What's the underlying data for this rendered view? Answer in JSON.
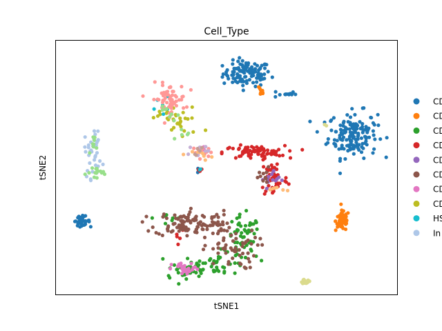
{
  "chart_data": {
    "type": "scatter",
    "title": "Cell_Type",
    "xlabel": "tSNE1",
    "ylabel": "tSNE2",
    "xlim": [
      0,
      100
    ],
    "ylim": [
      0,
      100
    ],
    "ticks": false,
    "grid": false,
    "legend_position": "right, clipped at figure edge",
    "legend_visible_labels": [
      "CD",
      "CD",
      "CD",
      "CD",
      "CD",
      "CD",
      "CD",
      "CD",
      "HS",
      "In"
    ],
    "series": [
      {
        "legend_text": "CD",
        "color": "#1f77b4",
        "clusters": [
          {
            "cx": 56,
            "cy": 87,
            "sx": 3.5,
            "sy": 2.5,
            "n": 110
          },
          {
            "cx": 67,
            "cy": 79,
            "sx": 1.7,
            "sy": 0.8,
            "n": 12
          },
          {
            "cx": 87,
            "cy": 63,
            "sx": 3.6,
            "sy": 4.5,
            "n": 160
          },
          {
            "cx": 7.5,
            "cy": 29,
            "sx": 1.2,
            "sy": 0.9,
            "n": 35
          },
          {
            "cx": 42,
            "cy": 49,
            "sx": 0.3,
            "sy": 0.5,
            "n": 3
          }
        ]
      },
      {
        "legend_text": "CD",
        "color": "#ff7f0e",
        "clusters": [
          {
            "cx": 84,
            "cy": 29,
            "sx": 1.0,
            "sy": 2.0,
            "n": 65
          },
          {
            "cx": 60,
            "cy": 80,
            "sx": 0.6,
            "sy": 1.2,
            "n": 8
          }
        ]
      },
      {
        "legend_text": "CD",
        "color": "#2ca02c",
        "clusters": [
          {
            "cx": 55,
            "cy": 22,
            "sx": 2.5,
            "sy": 4.5,
            "n": 55
          },
          {
            "cx": 47,
            "cy": 12,
            "sx": 5.5,
            "sy": 2.0,
            "n": 50
          },
          {
            "cx": 38,
            "cy": 9,
            "sx": 3.5,
            "sy": 1.2,
            "n": 25
          },
          {
            "cx": 34,
            "cy": 30,
            "sx": 2.5,
            "sy": 1.5,
            "n": 8
          }
        ]
      },
      {
        "legend_text": "CD",
        "color": "#d62728",
        "clusters": [
          {
            "cx": 58,
            "cy": 56,
            "sx": 4.5,
            "sy": 1.3,
            "n": 75
          },
          {
            "cx": 64,
            "cy": 46,
            "sx": 2.0,
            "sy": 4.0,
            "n": 50
          },
          {
            "cx": 36,
            "cy": 24,
            "sx": 1.0,
            "sy": 1.5,
            "n": 5
          },
          {
            "cx": 42,
            "cy": 49,
            "sx": 0.5,
            "sy": 0.5,
            "n": 6
          }
        ]
      },
      {
        "legend_text": "CD",
        "color": "#9467bd",
        "clusters": [
          {
            "cx": 64,
            "cy": 45,
            "sx": 1.8,
            "sy": 2.0,
            "n": 14
          }
        ]
      },
      {
        "legend_text": "CD",
        "color": "#8c564b",
        "clusters": [
          {
            "cx": 37,
            "cy": 28,
            "sx": 4.0,
            "sy": 2.5,
            "n": 75
          },
          {
            "cx": 51,
            "cy": 18,
            "sx": 4.0,
            "sy": 4.0,
            "n": 55
          },
          {
            "cx": 45,
            "cy": 28,
            "sx": 3.0,
            "sy": 2.5,
            "n": 35
          },
          {
            "cx": 61,
            "cy": 46,
            "sx": 1.5,
            "sy": 2.0,
            "n": 10
          }
        ]
      },
      {
        "legend_text": "CD",
        "color": "#e377c2",
        "clusters": [
          {
            "cx": 38,
            "cy": 10,
            "sx": 2.0,
            "sy": 1.2,
            "n": 25
          },
          {
            "cx": 43,
            "cy": 57,
            "sx": 1.0,
            "sy": 1.0,
            "n": 5
          }
        ]
      },
      {
        "legend_text": "CD",
        "color": "#bcbd22",
        "clusters": [
          {
            "cx": 37,
            "cy": 68,
            "sx": 3.0,
            "sy": 3.5,
            "n": 25
          },
          {
            "cx": 31,
            "cy": 71,
            "sx": 1.5,
            "sy": 1.5,
            "n": 8
          }
        ]
      },
      {
        "legend_text": "HS",
        "color": "#17becf",
        "clusters": [
          {
            "cx": 31,
            "cy": 75,
            "sx": 1.0,
            "sy": 1.5,
            "n": 6
          },
          {
            "cx": 42,
            "cy": 49,
            "sx": 0.3,
            "sy": 0.3,
            "n": 2
          }
        ]
      },
      {
        "legend_text": "In",
        "color": "#aec7e8",
        "clusters": [
          {
            "cx": 11,
            "cy": 56,
            "sx": 1.3,
            "sy": 5.0,
            "n": 35
          }
        ]
      },
      {
        "legend_text": "",
        "color": "#ff9896",
        "clusters": [
          {
            "cx": 33,
            "cy": 77,
            "sx": 2.5,
            "sy": 3.0,
            "n": 60
          },
          {
            "cx": 43,
            "cy": 56,
            "sx": 1.5,
            "sy": 1.0,
            "n": 15
          }
        ]
      },
      {
        "legend_text": "",
        "color": "#98df8a",
        "clusters": [
          {
            "cx": 13,
            "cy": 48,
            "sx": 2.0,
            "sy": 1.3,
            "n": 15
          },
          {
            "cx": 11,
            "cy": 60,
            "sx": 0.8,
            "sy": 1.5,
            "n": 8
          },
          {
            "cx": 34,
            "cy": 70,
            "sx": 2.0,
            "sy": 2.0,
            "n": 8
          },
          {
            "cx": 39,
            "cy": 64,
            "sx": 1.5,
            "sy": 1.5,
            "n": 5
          }
        ]
      },
      {
        "legend_text": "",
        "color": "#ffbb78",
        "clusters": [
          {
            "cx": 43,
            "cy": 55,
            "sx": 1.5,
            "sy": 1.0,
            "n": 10
          },
          {
            "cx": 64,
            "cy": 42,
            "sx": 1.5,
            "sy": 1.0,
            "n": 6
          }
        ]
      },
      {
        "legend_text": "",
        "color": "#c5b0d5",
        "clusters": [
          {
            "cx": 42,
            "cy": 57,
            "sx": 1.5,
            "sy": 1.0,
            "n": 8
          }
        ]
      },
      {
        "legend_text": "",
        "color": "#c49c94",
        "clusters": [
          {
            "cx": 42,
            "cy": 57,
            "sx": 1.0,
            "sy": 1.0,
            "n": 5
          }
        ]
      },
      {
        "legend_text": "",
        "color": "#dbdb8d",
        "clusters": [
          {
            "cx": 73,
            "cy": 5,
            "sx": 0.8,
            "sy": 0.4,
            "n": 22
          },
          {
            "cx": 79,
            "cy": 67,
            "sx": 0.3,
            "sy": 0.3,
            "n": 2
          }
        ]
      }
    ]
  }
}
